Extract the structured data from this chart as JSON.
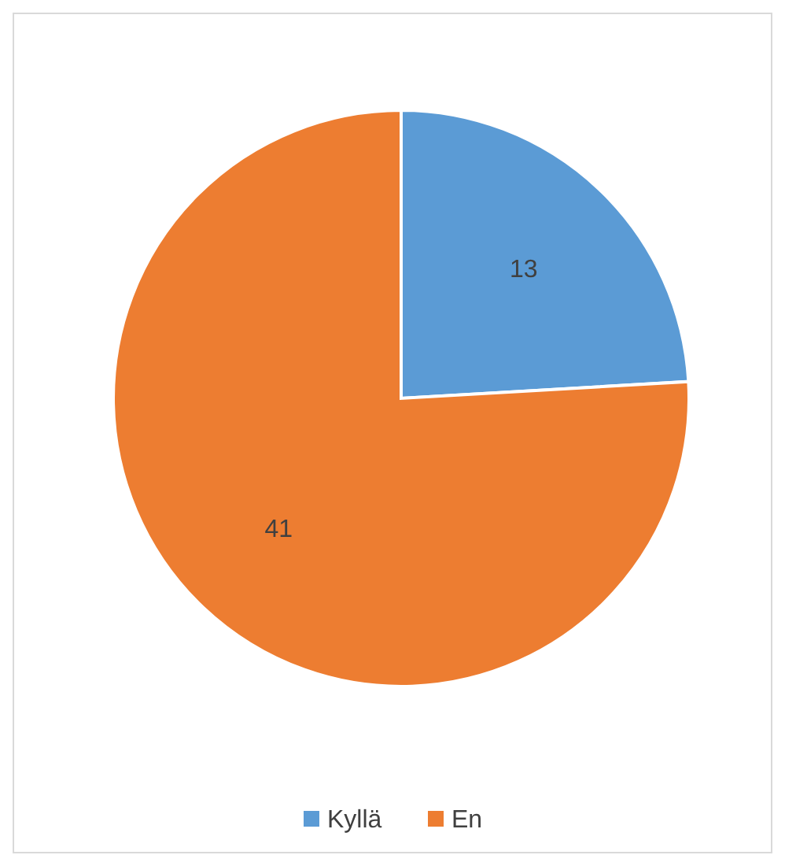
{
  "chart_data": {
    "type": "pie",
    "categories": [
      "Kyllä",
      "En"
    ],
    "values": [
      13,
      41
    ],
    "colors": [
      "#5b9bd5",
      "#ed7d31"
    ],
    "data_labels": true,
    "legend": "bottom"
  }
}
